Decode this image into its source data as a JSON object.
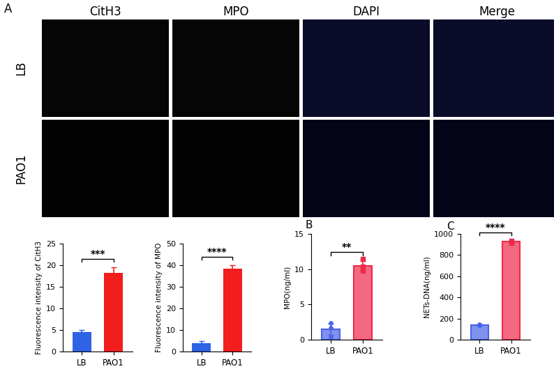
{
  "panel_labels": [
    "A",
    "B",
    "C"
  ],
  "image_grid": {
    "columns": [
      "CitH3",
      "MPO",
      "DAPI",
      "Merge"
    ],
    "rows": [
      "LB",
      "PAO1"
    ]
  },
  "chart_data": [
    {
      "type": "bar",
      "categories": [
        "LB",
        "PAO1"
      ],
      "values": [
        4.5,
        18.2
      ],
      "errors": [
        0.5,
        1.3
      ],
      "colors": [
        "#2e63e6",
        "#f21d1d"
      ],
      "ylabel": "Fluorescence intensity of CitH3",
      "ylim": [
        0,
        25
      ],
      "yticks": [
        0,
        5,
        10,
        15,
        20,
        25
      ],
      "annotations": [
        "***"
      ]
    },
    {
      "type": "bar",
      "categories": [
        "LB",
        "PAO1"
      ],
      "values": [
        4.0,
        38.5
      ],
      "errors": [
        0.8,
        1.5
      ],
      "colors": [
        "#2e63e6",
        "#f21d1d"
      ],
      "ylabel": "Fluorescence intensity of MPO",
      "ylim": [
        0,
        50
      ],
      "yticks": [
        0,
        10,
        20,
        30,
        40,
        50
      ],
      "annotations": [
        "****"
      ]
    },
    {
      "type": "bar",
      "categories": [
        "LB",
        "PAO1"
      ],
      "values": [
        1.5,
        10.5
      ],
      "errors": [
        0.8,
        0.7
      ],
      "points": [
        [
          0.4,
          1.7,
          2.4
        ],
        [
          9.8,
          10.4,
          11.4
        ]
      ],
      "colors": [
        "#4a64e8",
        "#ee2a4a"
      ],
      "ylabel": "MPO(ng/ml)",
      "ylim": [
        0,
        15
      ],
      "yticks": [
        0,
        5,
        10,
        15
      ],
      "annotations": [
        "**"
      ]
    },
    {
      "type": "bar",
      "categories": [
        "LB",
        "PAO1"
      ],
      "values": [
        140,
        925
      ],
      "errors": [
        6,
        10
      ],
      "points": [
        [
          135,
          140,
          145
        ],
        [
          915,
          925,
          935
        ]
      ],
      "colors": [
        "#4a64e8",
        "#ee2a4a"
      ],
      "ylabel": "NETs-DNA(ng/ml)",
      "ylim": [
        0,
        1000
      ],
      "yticks": [
        0,
        200,
        400,
        600,
        800,
        1000
      ],
      "annotations": [
        "****"
      ]
    }
  ]
}
